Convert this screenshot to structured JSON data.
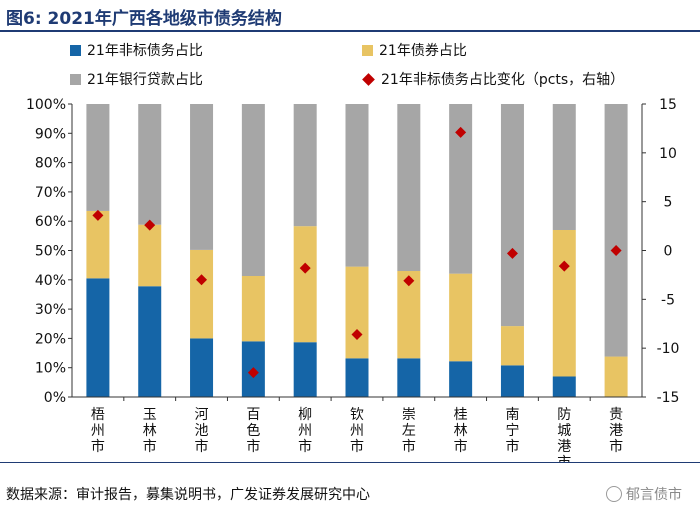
{
  "title": "图6:  2021年广西各地级市债务结构",
  "legend": {
    "nonstd": "21年非标债务占比",
    "bond": "21年债券占比",
    "loan": "21年银行贷款占比",
    "change": "21年非标债务占比变化（pcts，右轴）"
  },
  "colors": {
    "nonstd": "#1565a7",
    "bond": "#e8c463",
    "loan": "#a6a6a6",
    "change": "#c00000"
  },
  "source": "数据来源：审计报告，募集说明书，广发证券发展研究中心",
  "watermark": "郁言债市",
  "chart_data": {
    "type": "bar",
    "stacked": true,
    "categories": [
      "梧州市",
      "玉林市",
      "河池市",
      "百色市",
      "柳州市",
      "钦州市",
      "崇左市",
      "桂林市",
      "南宁市",
      "防城港市",
      "贵港市"
    ],
    "category_lines": [
      [
        "梧",
        "州",
        "市"
      ],
      [
        "玉",
        "林",
        "市"
      ],
      [
        "河",
        "池",
        "市"
      ],
      [
        "百",
        "色",
        "市"
      ],
      [
        "柳",
        "州",
        "市"
      ],
      [
        "钦",
        "州",
        "市"
      ],
      [
        "崇",
        "左",
        "市"
      ],
      [
        "桂",
        "林",
        "市"
      ],
      [
        "南",
        "宁",
        "市"
      ],
      [
        "防",
        "城",
        "港",
        "市"
      ],
      [
        "贵",
        "港",
        "市"
      ]
    ],
    "series": [
      {
        "name": "21年非标债务占比",
        "values": [
          40.5,
          37.8,
          20,
          19,
          18.7,
          13.2,
          13.2,
          12.2,
          10.8,
          7,
          0
        ]
      },
      {
        "name": "21年债券占比",
        "values": [
          23,
          21,
          30.2,
          22.3,
          39.6,
          31.3,
          29.8,
          29.9,
          13.4,
          50,
          13.8
        ]
      },
      {
        "name": "21年银行贷款占比",
        "values": [
          36.5,
          41.2,
          49.8,
          58.7,
          41.7,
          55.5,
          57,
          57.9,
          75.8,
          43,
          86.2
        ]
      }
    ],
    "line_series": {
      "name": "21年非标债务占比变化（pcts，右轴）",
      "values": [
        3.6,
        2.6,
        -3,
        -12.5,
        -1.8,
        -8.6,
        -3.1,
        12.1,
        -0.3,
        -1.6,
        0
      ],
      "axis": "right"
    },
    "ylim": [
      0,
      100
    ],
    "yticks": [
      "0%",
      "10%",
      "20%",
      "30%",
      "40%",
      "50%",
      "60%",
      "70%",
      "80%",
      "90%",
      "100%"
    ],
    "y2lim": [
      -15,
      15
    ],
    "y2ticks": [
      "-15",
      "-10",
      "-5",
      "0",
      "5",
      "10",
      "15"
    ]
  }
}
